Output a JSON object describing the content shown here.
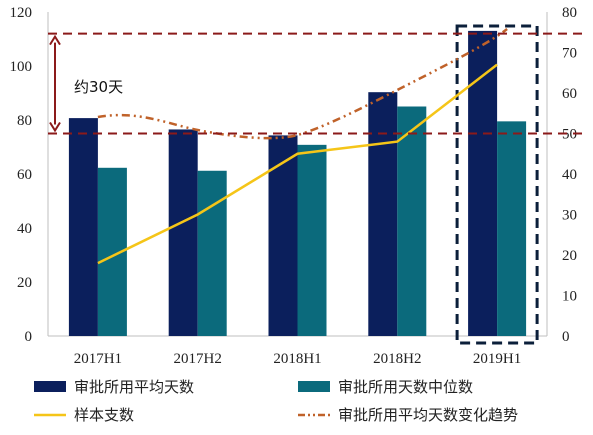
{
  "chart_data": {
    "type": "bar",
    "categories": [
      "2017H1",
      "2017H2",
      "2018H1",
      "2018H2",
      "2019H1"
    ],
    "ylim_left": [
      0,
      120
    ],
    "yticks_left": [
      0,
      20,
      40,
      60,
      80,
      100,
      120
    ],
    "ylim_right": [
      0,
      80
    ],
    "yticks_right": [
      0,
      10,
      20,
      30,
      40,
      50,
      60,
      70,
      80
    ],
    "series": [
      {
        "name": "审批所用平均天数",
        "kind": "bar",
        "axis": "left",
        "color": "#0b1f5c",
        "values": [
          80.7,
          76.5,
          74.3,
          90.3,
          113.0
        ]
      },
      {
        "name": "审批所用天数中位数",
        "kind": "bar",
        "axis": "left",
        "color": "#0b6a7c",
        "values": [
          62.3,
          61.2,
          70.8,
          85.0,
          79.5
        ]
      },
      {
        "name": "样本支数",
        "kind": "line",
        "axis": "right",
        "color": "#f5c518",
        "values": [
          18,
          30,
          45,
          48,
          67
        ]
      },
      {
        "name": "审批所用平均天数变化趋势",
        "kind": "trend",
        "axis": "left",
        "color": "#c0622a",
        "style": "dash-dot-dot"
      }
    ],
    "reference_lines": {
      "axis": "left",
      "values": [
        112,
        75
      ],
      "color": "#8b1a1a",
      "style": "dashed"
    },
    "annotation": "约30天",
    "highlight_category": "2019H1",
    "grid": false,
    "legend_position": "bottom"
  }
}
